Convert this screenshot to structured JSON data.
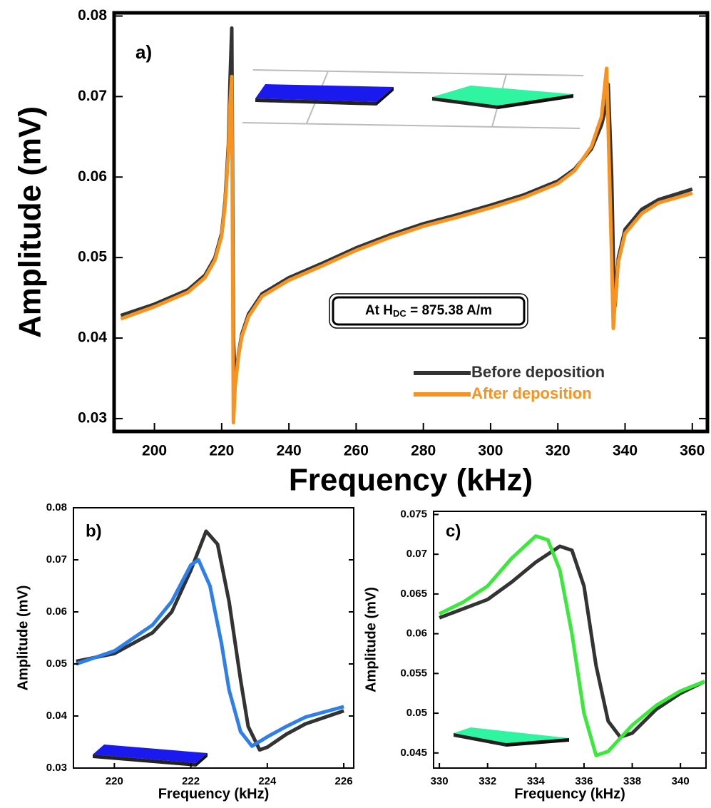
{
  "chart_data": [
    {
      "type": "line",
      "label": "a)",
      "x_label": "Frequency (kHz)",
      "y_label": "Amplitude (mV)",
      "annotation": [
        "At H",
        "DC",
        " = 875.38 A/m"
      ],
      "xlim": [
        188,
        364.5
      ],
      "xticks": [
        200,
        220,
        240,
        260,
        280,
        300,
        320,
        340,
        360
      ],
      "ylim": [
        0.0284,
        0.0804
      ],
      "yticks": [
        0.03,
        0.04,
        0.05,
        0.06,
        0.07,
        0.08
      ],
      "legend": "lower right",
      "x": [
        190,
        200,
        210,
        215,
        218,
        220,
        221,
        222,
        222.5,
        223,
        223.5,
        224,
        225,
        226,
        228,
        232,
        240,
        250,
        260,
        270,
        280,
        290,
        300,
        310,
        320,
        325,
        330,
        333,
        334.5,
        335,
        336,
        336.5,
        337,
        338,
        340,
        345,
        350,
        360
      ],
      "series": [
        {
          "name": "Before deposition",
          "color": "#333333",
          "values": [
            0.0428,
            0.0442,
            0.046,
            0.0478,
            0.05,
            0.053,
            0.057,
            0.064,
            0.072,
            0.0785,
            0.04,
            0.0345,
            0.038,
            0.0405,
            0.043,
            0.0455,
            0.0475,
            0.0493,
            0.0512,
            0.0528,
            0.0542,
            0.0553,
            0.0565,
            0.0578,
            0.0595,
            0.061,
            0.0635,
            0.0665,
            0.069,
            0.0715,
            0.06,
            0.05,
            0.044,
            0.05,
            0.0535,
            0.056,
            0.0572,
            0.0585
          ]
        },
        {
          "name": "After deposition",
          "color": "#f7931e",
          "values": [
            0.0424,
            0.0439,
            0.0457,
            0.0475,
            0.0497,
            0.0527,
            0.0565,
            0.063,
            0.069,
            0.0725,
            0.0295,
            0.034,
            0.0378,
            0.0402,
            0.0427,
            0.0452,
            0.0472,
            0.049,
            0.0509,
            0.0525,
            0.0539,
            0.055,
            0.0562,
            0.0575,
            0.0592,
            0.0608,
            0.0638,
            0.0675,
            0.0735,
            0.066,
            0.05,
            0.0412,
            0.0445,
            0.0495,
            0.053,
            0.0555,
            0.0568,
            0.058
          ]
        }
      ]
    },
    {
      "type": "line",
      "label": "b)",
      "x_label": "Frequency (kHz)",
      "y_label": "Amplitude (mV)",
      "xlim": [
        218.93,
        226.26
      ],
      "xticks": [
        220,
        222,
        224,
        226
      ],
      "ylim": [
        0.03,
        0.08
      ],
      "yticks": [
        0.03,
        0.04,
        0.05,
        0.06,
        0.07,
        0.08
      ],
      "series": [
        {
          "name": null,
          "color": "#333333",
          "x": [
            219,
            220,
            221,
            221.5,
            222,
            222.4,
            222.7,
            223,
            223.3,
            223.5,
            223.8,
            224,
            224.5,
            225,
            226
          ],
          "values": [
            0.0505,
            0.052,
            0.056,
            0.06,
            0.068,
            0.0755,
            0.073,
            0.062,
            0.047,
            0.038,
            0.0335,
            0.034,
            0.0365,
            0.0385,
            0.041
          ]
        },
        {
          "name": null,
          "color": "#2f7fe8",
          "x": [
            219,
            220,
            221,
            221.5,
            222,
            222.2,
            222.5,
            222.8,
            223,
            223.3,
            223.6,
            224,
            224.5,
            225,
            226
          ],
          "values": [
            0.05,
            0.0525,
            0.0575,
            0.062,
            0.069,
            0.07,
            0.065,
            0.054,
            0.045,
            0.037,
            0.0342,
            0.036,
            0.038,
            0.0398,
            0.0418
          ]
        }
      ]
    },
    {
      "type": "line",
      "label": "c)",
      "x_label": "Frequency (kHz)",
      "y_label": "Amplitude (mV)",
      "xlim": [
        329.76,
        341.06
      ],
      "xticks": [
        330,
        332,
        334,
        336,
        338,
        340
      ],
      "ylim": [
        0.0431,
        0.0754
      ],
      "yticks": [
        0.045,
        0.05,
        0.055,
        0.06,
        0.065,
        0.07,
        0.075
      ],
      "series": [
        {
          "name": null,
          "color": "#333333",
          "x": [
            330,
            332,
            333,
            334,
            335,
            335.5,
            336,
            336.5,
            337,
            337.5,
            338,
            339,
            340,
            341
          ],
          "values": [
            0.062,
            0.0643,
            0.0665,
            0.069,
            0.071,
            0.0705,
            0.066,
            0.056,
            0.049,
            0.047,
            0.0475,
            0.0505,
            0.0525,
            0.054
          ]
        },
        {
          "name": null,
          "color": "#3de83d",
          "x": [
            330,
            331,
            332,
            333,
            334,
            334.5,
            335,
            335.5,
            336,
            336.5,
            337,
            338,
            339,
            340,
            341
          ],
          "values": [
            0.0625,
            0.064,
            0.066,
            0.0695,
            0.0723,
            0.0718,
            0.068,
            0.06,
            0.05,
            0.0447,
            0.0452,
            0.0485,
            0.051,
            0.0528,
            0.054
          ]
        }
      ]
    }
  ]
}
